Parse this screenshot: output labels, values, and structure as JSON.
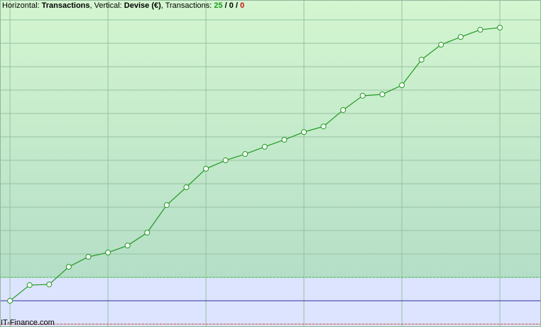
{
  "chart_data": {
    "type": "line",
    "title_parts": [
      {
        "text": "Horizontal: "
      },
      {
        "text": "Transactions",
        "bold": true
      },
      {
        "text": ", Vertical: "
      },
      {
        "text": "Devise (€)",
        "bold": true
      },
      {
        "text": ", Transactions: "
      },
      {
        "value": 25,
        "bold": true,
        "color": "#1a9a1a"
      },
      {
        "text": " / ",
        "bold": true
      },
      {
        "value": 0,
        "bold": true,
        "color": "#000000"
      },
      {
        "text": " / ",
        "bold": true
      },
      {
        "value": 0,
        "bold": true,
        "color": "#d01010"
      }
    ],
    "watermark": "IT-Finance.com",
    "x": [
      0,
      1,
      2,
      3,
      4,
      5,
      6,
      7,
      8,
      9,
      10,
      11,
      12,
      13,
      14,
      15,
      16,
      17,
      18,
      19,
      20,
      21,
      22,
      23,
      24,
      25
    ],
    "values": [
      0,
      0.67,
      0.7,
      1.45,
      1.88,
      2.06,
      2.36,
      2.91,
      4.09,
      4.85,
      5.64,
      6.0,
      6.27,
      6.58,
      6.88,
      7.21,
      7.45,
      8.15,
      8.76,
      8.82,
      9.21,
      10.3,
      10.94,
      11.27,
      11.58,
      11.67
    ],
    "color": "#1f9a1f",
    "xlim": [
      -0.51,
      27.1
    ],
    "ylim": [
      -1.12,
      12.85
    ],
    "xticks": [
      0,
      5,
      10,
      15,
      20,
      25
    ],
    "yticks": [
      -1,
      0,
      1,
      2,
      3,
      4,
      5,
      6,
      7,
      8,
      9,
      10,
      11,
      12
    ],
    "grid": true,
    "lines": [
      {
        "value": 1,
        "color": "#3cbf3c",
        "dashed": true
      },
      {
        "value": 0,
        "color": "#3030a0",
        "dashed": false
      },
      {
        "value": -1,
        "color": "#e04040",
        "dashed": true
      }
    ],
    "lower_fill": "#dde4ff"
  }
}
